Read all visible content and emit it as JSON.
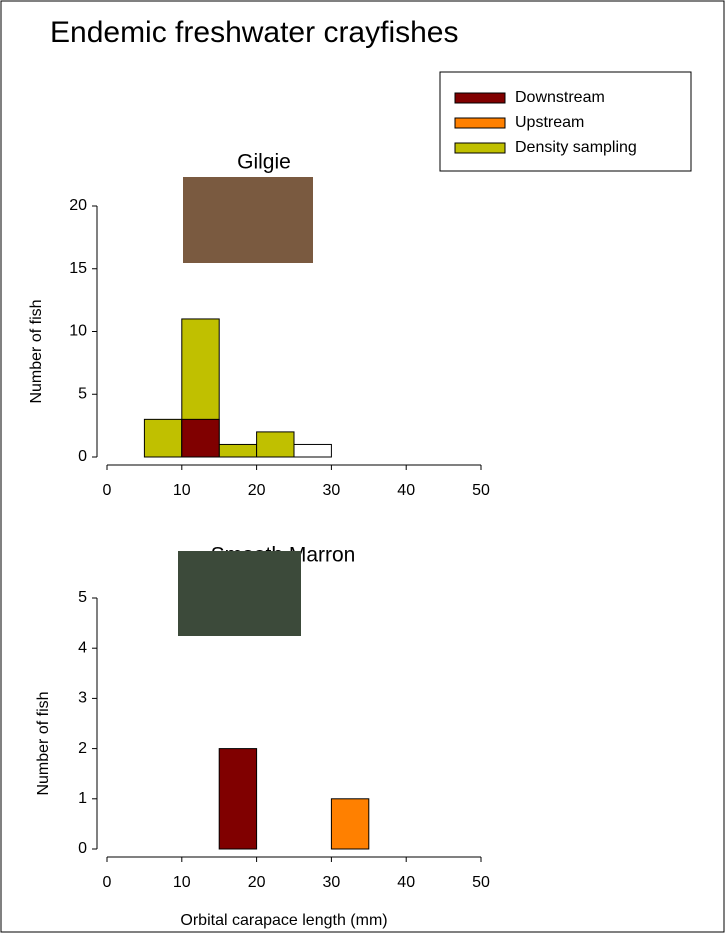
{
  "title": "Endemic freshwater crayfishes",
  "chart_data": [
    {
      "type": "histogram",
      "title": "Gilgie",
      "ylabel": "Number of fish",
      "bins": [
        0,
        5,
        10,
        15,
        20,
        25,
        30,
        35,
        40,
        45,
        50
      ],
      "series": [
        {
          "name": "Downstream",
          "color": "#800000",
          "values": [
            0,
            0,
            3,
            0,
            0,
            0,
            0,
            0,
            0,
            0
          ]
        },
        {
          "name": "Upstream",
          "color": "#ff8000",
          "values": [
            0,
            0,
            0,
            0,
            0,
            0,
            0,
            0,
            0,
            0
          ]
        },
        {
          "name": "Density sampling",
          "color": "#c0c000",
          "values": [
            0,
            3,
            11,
            1,
            2,
            0,
            0,
            0,
            0,
            0
          ]
        },
        {
          "name": null,
          "color": "#ffffff",
          "values": [
            0,
            0,
            0,
            0,
            0,
            1,
            0,
            0,
            0,
            0
          ]
        }
      ],
      "xlim": [
        0,
        50
      ],
      "xticks": [
        0,
        10,
        20,
        30,
        40,
        50
      ],
      "ylim": [
        0,
        20
      ],
      "yticks": [
        0,
        5,
        10,
        15,
        20
      ],
      "legend": "upper right"
    },
    {
      "type": "histogram",
      "title": "Smooth Marron",
      "ylabel": "Number of fish",
      "xlabel": "Orbital carapace length (mm)",
      "bins": [
        0,
        5,
        10,
        15,
        20,
        25,
        30,
        35,
        40,
        45,
        50
      ],
      "series": [
        {
          "name": "Downstream",
          "color": "#800000",
          "values": [
            0,
            0,
            0,
            2,
            0,
            0,
            0,
            0,
            0,
            0
          ]
        },
        {
          "name": "Upstream",
          "color": "#ff8000",
          "values": [
            0,
            0,
            0,
            0,
            0,
            0,
            1,
            0,
            0,
            0
          ]
        }
      ],
      "xlim": [
        0,
        50
      ],
      "xticks": [
        0,
        10,
        20,
        30,
        40,
        50
      ],
      "ylim": [
        0,
        5
      ],
      "yticks": [
        0,
        1,
        2,
        3,
        4,
        5
      ]
    }
  ]
}
